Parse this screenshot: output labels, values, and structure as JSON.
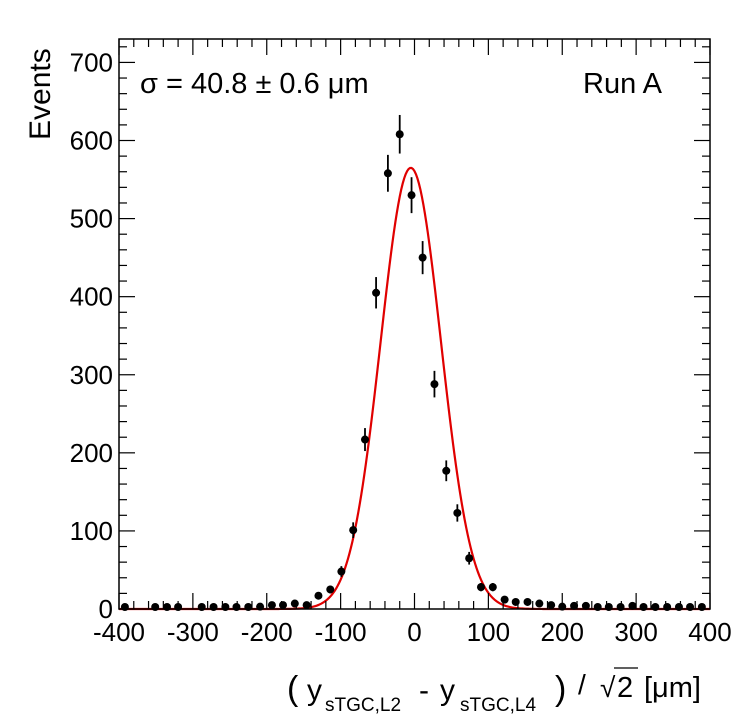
{
  "chart_data": {
    "type": "scatter",
    "title": "",
    "ylabel": "Events",
    "xlabel_parts": {
      "open": "(",
      "y1": "y",
      "sub1": "sTGC,L2",
      "minus": "-",
      "y2": "y",
      "sub2": "sTGC,L4",
      "close": ")",
      "slash": "/",
      "sqrt_sign": "√",
      "sqrt_arg": "2",
      "unit": "[μm]"
    },
    "annotation_left": "σ = 40.8 ± 0.6 μm",
    "annotation_right": "Run A",
    "xlim": [
      -400,
      400
    ],
    "ylim": [
      0,
      730
    ],
    "x_ticks": [
      -400,
      -300,
      -200,
      -100,
      0,
      100,
      200,
      300,
      400
    ],
    "x_tick_labels": [
      "-400",
      "-300",
      "-200",
      "-100",
      "0",
      "100",
      "200",
      "300",
      "400"
    ],
    "y_ticks": [
      0,
      100,
      200,
      300,
      400,
      500,
      600,
      700
    ],
    "y_tick_labels": [
      "0",
      "100",
      "200",
      "300",
      "400",
      "500",
      "600",
      "700"
    ],
    "data_points": {
      "name": "data",
      "color": "#000000",
      "x": [
        -392,
        -351,
        -335,
        -320,
        -288,
        -272,
        -256,
        -241,
        -225,
        -209,
        -193,
        -178,
        -162,
        -146,
        -130,
        -114,
        -99,
        -83,
        -67,
        -52,
        -36,
        -20,
        -4,
        11,
        27,
        43,
        58,
        74,
        90,
        106,
        122,
        137,
        153,
        169,
        185,
        200,
        216,
        232,
        248,
        263,
        279,
        295,
        310,
        326,
        342,
        358,
        373,
        389
      ],
      "y": [
        2,
        1,
        1,
        0,
        1,
        1,
        2,
        2,
        1,
        3,
        5,
        5,
        7,
        5,
        17,
        25,
        48,
        101,
        217,
        405,
        558,
        608,
        530,
        450,
        288,
        177,
        123,
        65,
        28,
        28,
        12,
        9,
        9,
        7,
        5,
        3,
        4,
        4,
        2,
        2,
        1,
        4,
        1,
        1,
        0,
        0,
        0,
        0
      ],
      "yerr": [
        1.5,
        1,
        1,
        0,
        1,
        1,
        1.5,
        1.5,
        1,
        1.7,
        2.2,
        2.2,
        2.6,
        2.2,
        4.1,
        5,
        6.9,
        10,
        14.7,
        20.1,
        23.6,
        24.7,
        23,
        21.2,
        17,
        13.3,
        11.1,
        8.1,
        5.3,
        5.3,
        3.5,
        3,
        3,
        2.6,
        2.2,
        1.7,
        2,
        2,
        1.4,
        1.4,
        1,
        2,
        1,
        1,
        0,
        0,
        0,
        0
      ]
    },
    "fit": {
      "name": "gaussian fit",
      "color": "#e00000",
      "amplitude": 565,
      "mean": -5,
      "sigma": 40.8
    }
  }
}
